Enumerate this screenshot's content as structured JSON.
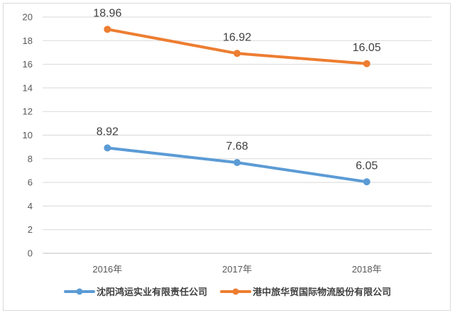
{
  "chart_data": {
    "type": "line",
    "categories": [
      "2016年",
      "2017年",
      "2018年"
    ],
    "ylim": [
      0,
      20
    ],
    "yticks": [
      0,
      2,
      4,
      6,
      8,
      10,
      12,
      14,
      16,
      18,
      20
    ],
    "grid": true,
    "legend_position": "bottom",
    "series": [
      {
        "name": "沈阳鸿运实业有限责任公司",
        "values": [
          8.92,
          7.68,
          6.05
        ],
        "color": "#5b9bd5"
      },
      {
        "name": "港中旅华贸国际物流股份有限公司",
        "values": [
          18.96,
          16.92,
          16.05
        ],
        "color": "#ed7d31"
      }
    ]
  }
}
